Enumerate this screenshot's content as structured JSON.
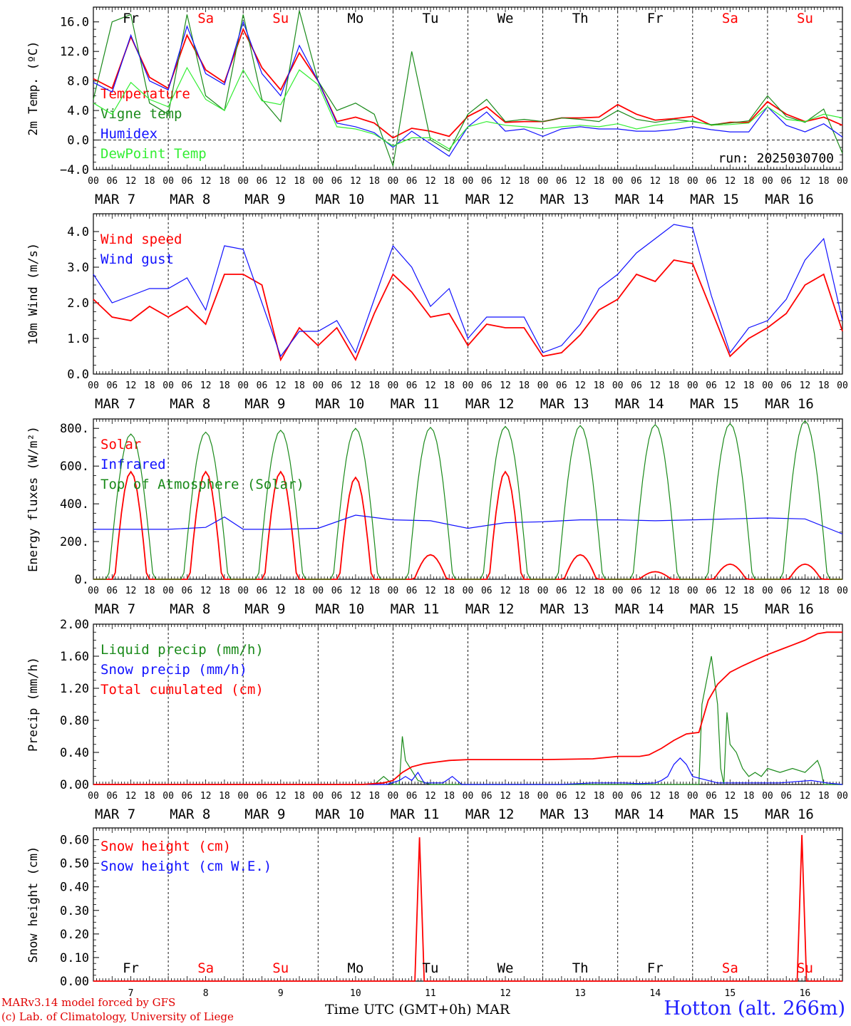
{
  "footer": {
    "model": "MARv3.14 model forced by GFS",
    "lab": "(c) Lab. of Climatology, University of Liege",
    "xaxis_title": "Time UTC (GMT+0h) MAR",
    "station": "Hotton (alt. 266m)",
    "run": "run: 2025030700"
  },
  "days": {
    "weekday": [
      "Fr",
      "Sa",
      "Su",
      "Mo",
      "Tu",
      "We",
      "Th",
      "Fr",
      "Sa",
      "Su"
    ],
    "weekend": [
      false,
      true,
      true,
      false,
      false,
      false,
      false,
      false,
      true,
      true
    ],
    "dates": [
      "MAR  7",
      "MAR  8",
      "MAR  9",
      "MAR 10",
      "MAR 11",
      "MAR 12",
      "MAR 13",
      "MAR 14",
      "MAR 15",
      "MAR 16"
    ],
    "day_numbers": [
      "7",
      "8",
      "9",
      "10",
      "11",
      "12",
      "13",
      "14",
      "15",
      "16"
    ],
    "hour_ticks": [
      "00",
      "06",
      "12",
      "18"
    ],
    "last_tick": "00"
  },
  "colors": {
    "red": "#ff0000",
    "green": "#1a8a1a",
    "blue": "#1010ff",
    "lightgreen": "#33ee33",
    "weekend": "#ff0000",
    "weekday": "#000000"
  },
  "chart_data": [
    {
      "type": "line",
      "ylabel": "2m Temp. (ºC)",
      "ylim": [
        -4,
        18
      ],
      "yticks": [
        "-4.0",
        "0.0",
        "4.0",
        "8.0",
        "12.0",
        "16.0"
      ],
      "zero_line": true,
      "x_hours": [
        0,
        6,
        12,
        18,
        24,
        30,
        36,
        42,
        48,
        54,
        60,
        66,
        72,
        78,
        84,
        90,
        96,
        102,
        108,
        114,
        120,
        126,
        132,
        138,
        144,
        150,
        156,
        162,
        168,
        174,
        180,
        186,
        192,
        198,
        204,
        210,
        216,
        222,
        228,
        234,
        240
      ],
      "series": [
        {
          "name": "Temperature",
          "color": "red",
          "values": [
            8.3,
            7,
            14,
            8.5,
            7,
            14.2,
            9.5,
            7.8,
            15,
            9.8,
            6.8,
            11.8,
            8,
            2.5,
            3.1,
            2.3,
            0.3,
            1.6,
            1.2,
            0.5,
            3.2,
            4.5,
            2.4,
            2.5,
            2.5,
            3.0,
            3.0,
            3.1,
            4.8,
            3.5,
            2.7,
            2.9,
            3.2,
            2.0,
            2.4,
            2.4,
            5.2,
            3.5,
            2.5,
            3.1,
            2.0
          ]
        },
        {
          "name": "Vigne temp",
          "color": "green",
          "values": [
            5.5,
            16,
            17,
            5,
            3.5,
            17,
            6,
            4,
            17,
            5.5,
            2.5,
            17.5,
            8,
            4,
            5,
            3.5,
            -3.5,
            12,
            0,
            -1.5,
            3.5,
            5.5,
            2.5,
            2.8,
            2.5,
            3.0,
            2.8,
            2.5,
            4,
            2.8,
            2.4,
            2.8,
            2.5,
            2.1,
            2.3,
            2.6,
            6,
            3.2,
            2.4,
            4.2,
            -1.8
          ]
        },
        {
          "name": "Humidex",
          "color": "blue",
          "values": [
            7.8,
            6.5,
            14.2,
            8,
            6.8,
            15.4,
            9,
            7.5,
            16,
            9,
            6,
            12.8,
            8,
            2.3,
            1.8,
            1,
            -1,
            1.2,
            -0.5,
            -2.2,
            1.8,
            3.8,
            1.2,
            1.5,
            0.5,
            1.5,
            1.8,
            1.5,
            1.5,
            1.2,
            1.2,
            1.4,
            1.8,
            1.4,
            1.1,
            1.1,
            4.5,
            2,
            1.1,
            2.2,
            0.4
          ]
        },
        {
          "name": "DewPoint Temp",
          "color": "lightgreen",
          "values": [
            5,
            3.5,
            7.8,
            5.5,
            4.5,
            9.8,
            5.5,
            4,
            9.5,
            5.3,
            4.8,
            9.5,
            7.5,
            1.8,
            1.5,
            0.8,
            -0.8,
            0.3,
            0.3,
            -1.2,
            1.8,
            2.5,
            2,
            1.8,
            1.5,
            1.8,
            2,
            1.8,
            2.2,
            1.5,
            2,
            2.3,
            2.6,
            2,
            2.1,
            2.3,
            4.5,
            2.8,
            2.5,
            3.5,
            3
          ]
        }
      ]
    },
    {
      "type": "line",
      "ylabel": "10m Wind (m/s)",
      "ylim": [
        0,
        4.5
      ],
      "yticks": [
        "0.0",
        "1.0",
        "2.0",
        "3.0",
        "4.0"
      ],
      "x_hours": [
        0,
        6,
        12,
        18,
        24,
        30,
        36,
        42,
        48,
        54,
        60,
        66,
        72,
        78,
        84,
        90,
        96,
        102,
        108,
        114,
        120,
        126,
        132,
        138,
        144,
        150,
        156,
        162,
        168,
        174,
        180,
        186,
        192,
        198,
        204,
        210,
        216,
        222,
        228,
        234,
        240
      ],
      "series": [
        {
          "name": "Wind speed",
          "color": "red",
          "values": [
            2.1,
            1.6,
            1.5,
            1.9,
            1.6,
            1.9,
            1.4,
            2.8,
            2.8,
            2.5,
            0.4,
            1.3,
            0.8,
            1.3,
            0.4,
            1.7,
            2.8,
            2.3,
            1.6,
            1.7,
            0.8,
            1.4,
            1.3,
            1.3,
            0.5,
            0.6,
            1.1,
            1.8,
            2.1,
            2.8,
            2.6,
            3.2,
            3.1,
            1.8,
            0.5,
            1.0,
            1.3,
            1.7,
            2.5,
            2.8,
            1.2
          ]
        },
        {
          "name": "Wind gust",
          "color": "blue",
          "values": [
            2.8,
            2.0,
            2.2,
            2.4,
            2.4,
            2.7,
            1.8,
            3.6,
            3.5,
            2.0,
            0.5,
            1.2,
            1.2,
            1.5,
            0.6,
            2.1,
            3.6,
            3.0,
            1.9,
            2.4,
            1.0,
            1.6,
            1.6,
            1.6,
            0.6,
            0.8,
            1.4,
            2.4,
            2.8,
            3.4,
            3.8,
            4.2,
            4.1,
            2.2,
            0.6,
            1.3,
            1.5,
            2.1,
            3.2,
            3.8,
            1.5
          ]
        }
      ]
    },
    {
      "type": "line",
      "ylabel": "Energy fluxes (W/m²)",
      "ylim": [
        0,
        850
      ],
      "yticks": [
        "0.",
        "200.",
        "400.",
        "600.",
        "800."
      ],
      "series": [
        {
          "name": "Solar",
          "color": "red",
          "peaks": [
            570,
            570,
            570,
            540,
            130,
            570,
            130,
            40,
            80,
            80
          ]
        },
        {
          "name": "Infrared",
          "color": "blue",
          "x_hours": [
            0,
            12,
            24,
            36,
            42,
            48,
            60,
            72,
            84,
            96,
            108,
            120,
            132,
            144,
            156,
            168,
            180,
            192,
            204,
            216,
            228,
            240
          ],
          "values": [
            265,
            265,
            265,
            275,
            330,
            265,
            265,
            270,
            340,
            315,
            310,
            270,
            300,
            305,
            315,
            315,
            310,
            315,
            320,
            325,
            320,
            240
          ]
        },
        {
          "name": "Top of Atmosphere (Solar)",
          "color": "green",
          "peaks": [
            770,
            780,
            790,
            800,
            805,
            810,
            815,
            820,
            825,
            840
          ]
        }
      ]
    },
    {
      "type": "line",
      "ylabel": "Precip (mm/h)",
      "ylim": [
        0,
        2.0
      ],
      "yticks": [
        "0.00",
        "0.40",
        "0.80",
        "1.20",
        "1.60",
        "2.00"
      ],
      "series": [
        {
          "name": "Liquid precip (mm/h)",
          "color": "green",
          "x_hours": [
            0,
            90,
            93,
            96,
            98,
            99,
            100,
            104,
            108,
            130,
            140,
            180,
            194,
            195,
            196,
            198,
            200,
            201,
            202,
            203,
            204,
            206,
            208,
            210,
            212,
            214,
            216,
            220,
            224,
            228,
            232,
            233,
            234,
            240
          ],
          "values": [
            0,
            0,
            0.1,
            0,
            0,
            0.6,
            0.3,
            0.05,
            0,
            0,
            0,
            0,
            0,
            1.0,
            1.2,
            1.6,
            1.0,
            0.2,
            0,
            0.9,
            0.5,
            0.4,
            0.2,
            0.1,
            0.15,
            0.1,
            0.2,
            0.15,
            0.2,
            0.15,
            0.3,
            0.2,
            0,
            0
          ]
        },
        {
          "name": "Snow precip (mm/h)",
          "color": "blue",
          "x_hours": [
            0,
            94,
            98,
            100,
            102,
            104,
            106,
            112,
            115,
            118,
            122,
            150,
            160,
            166,
            170,
            175,
            180,
            182,
            184,
            186,
            188,
            190,
            192,
            200,
            210,
            220,
            230,
            235,
            240
          ],
          "values": [
            0,
            0,
            0.05,
            0.1,
            0.05,
            0.15,
            0.02,
            0.02,
            0.1,
            0,
            0,
            0,
            0.02,
            0.02,
            0.02,
            0.01,
            0.02,
            0.05,
            0.1,
            0.25,
            0.33,
            0.25,
            0.1,
            0.02,
            0.02,
            0.02,
            0.05,
            0.02,
            0
          ]
        },
        {
          "name": "Total cumulated (cm)",
          "color": "red",
          "x_hours": [
            0,
            86,
            93,
            96,
            99,
            102,
            106,
            110,
            114,
            120,
            144,
            160,
            168,
            175,
            178,
            182,
            186,
            190,
            194,
            197,
            200,
            204,
            208,
            212,
            216,
            220,
            224,
            228,
            232,
            235,
            240
          ],
          "values": [
            0,
            0,
            0.02,
            0.05,
            0.15,
            0.22,
            0.26,
            0.28,
            0.3,
            0.31,
            0.31,
            0.32,
            0.35,
            0.35,
            0.37,
            0.45,
            0.55,
            0.63,
            0.65,
            1.05,
            1.25,
            1.4,
            1.48,
            1.55,
            1.62,
            1.68,
            1.74,
            1.8,
            1.88,
            1.9,
            1.9
          ]
        }
      ]
    },
    {
      "type": "line",
      "ylabel": "Snow height (cm)",
      "ylim": [
        0,
        0.65
      ],
      "yticks": [
        "0.00",
        "0.10",
        "0.20",
        "0.30",
        "0.40",
        "0.50",
        "0.60"
      ],
      "series": [
        {
          "name": "Snow height (cm)",
          "color": "red",
          "x_hours": [
            0,
            103,
            104.5,
            106,
            225.5,
            227,
            228.5,
            240
          ],
          "values": [
            0,
            0,
            0.61,
            0,
            0,
            0.62,
            0,
            0
          ]
        },
        {
          "name": "Snow height (cm W.E.)",
          "color": "blue",
          "x_hours": [],
          "values": []
        }
      ]
    }
  ]
}
